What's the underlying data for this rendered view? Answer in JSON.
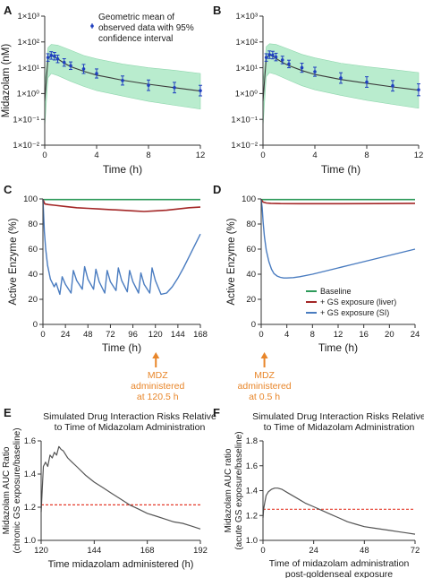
{
  "colors": {
    "band": "#b9ecce",
    "band_edge": "#8fd6ad",
    "obs": "#1f3fbf",
    "axis": "#333333",
    "baseline": "#2e9a5a",
    "liver": "#a32626",
    "si": "#4a7cc0",
    "orange": "#e8862a",
    "ref": "#e53a2a",
    "curve": "#555555"
  },
  "chart_data": [
    {
      "panel": "A",
      "type": "line",
      "xlabel": "Time (h)",
      "ylabel": "Midazolam (nM)",
      "xlim": [
        0,
        12
      ],
      "ylim": [
        0.01,
        1000
      ],
      "log_y": true,
      "xticks": [
        "0",
        "4",
        "8",
        "12"
      ],
      "yticks": [
        "1×10⁻²",
        "1×10⁻¹",
        "1×10⁰",
        "1×10¹",
        "1×10²",
        "1×10³"
      ],
      "legend": "Geometric mean of observed data with 95% confidence interval",
      "predicted": {
        "x": [
          0,
          0.25,
          0.5,
          0.75,
          1,
          1.5,
          2,
          3,
          4,
          6,
          8,
          10,
          12
        ],
        "y": [
          0.5,
          22,
          30,
          27,
          22,
          15,
          11,
          7.3,
          5.2,
          3.3,
          2.3,
          1.7,
          1.25
        ]
      },
      "ci_upper": {
        "x": [
          0,
          0.25,
          0.5,
          1,
          2,
          3,
          4,
          6,
          8,
          10,
          12
        ],
        "y": [
          2,
          60,
          80,
          75,
          48,
          30,
          22,
          14,
          10,
          8,
          6
        ]
      },
      "ci_lower": {
        "x": [
          0,
          0.25,
          0.5,
          1,
          2,
          3,
          4,
          6,
          8,
          10,
          12
        ],
        "y": [
          0.05,
          4,
          6,
          5,
          3,
          1.9,
          1.3,
          0.8,
          0.5,
          0.35,
          0.25
        ]
      },
      "observed": {
        "x": [
          0.25,
          0.5,
          0.75,
          1,
          1.5,
          2,
          3,
          4,
          6,
          8,
          10,
          12
        ],
        "y": [
          25,
          30,
          28,
          22,
          16,
          12,
          9,
          6,
          3.2,
          2.1,
          1.7,
          1.3
        ],
        "err": [
          1.4,
          1.4,
          1.4,
          1.4,
          1.4,
          1.4,
          1.5,
          1.5,
          1.5,
          1.6,
          1.6,
          1.6
        ]
      }
    },
    {
      "panel": "B",
      "type": "line",
      "xlabel": "Time (h)",
      "ylabel": "",
      "xlim": [
        0,
        12
      ],
      "ylim": [
        0.01,
        1000
      ],
      "log_y": true,
      "xticks": [
        "0",
        "4",
        "8",
        "12"
      ],
      "yticks": [
        "1×10⁻²",
        "1×10⁻¹",
        "1×10⁰",
        "1×10¹",
        "1×10²",
        "1×10³"
      ],
      "predicted": {
        "x": [
          0,
          0.25,
          0.5,
          0.75,
          1,
          1.5,
          2,
          3,
          4,
          6,
          8,
          10,
          12
        ],
        "y": [
          0.5,
          23,
          31,
          28,
          23,
          16,
          12,
          7.8,
          5.5,
          3.5,
          2.5,
          1.8,
          1.35
        ]
      },
      "ci_upper": {
        "x": [
          0,
          0.25,
          0.5,
          1,
          2,
          3,
          4,
          6,
          8,
          10,
          12
        ],
        "y": [
          2,
          65,
          85,
          80,
          52,
          33,
          24,
          15,
          11,
          8.5,
          6.5
        ]
      },
      "ci_lower": {
        "x": [
          0,
          0.25,
          0.5,
          1,
          2,
          3,
          4,
          6,
          8,
          10,
          12
        ],
        "y": [
          0.05,
          4.5,
          6.5,
          5.5,
          3.3,
          2,
          1.4,
          0.85,
          0.55,
          0.38,
          0.27
        ]
      },
      "observed": {
        "x": [
          0.25,
          0.5,
          0.75,
          1,
          1.5,
          2,
          3,
          4,
          6,
          8,
          10,
          12
        ],
        "y": [
          25,
          32,
          31,
          26,
          20,
          14,
          10,
          7,
          4,
          2.8,
          2,
          1.4
        ],
        "err": [
          1.4,
          1.4,
          1.4,
          1.4,
          1.4,
          1.4,
          1.5,
          1.5,
          1.6,
          1.6,
          1.6,
          1.7
        ]
      }
    },
    {
      "panel": "C",
      "type": "line",
      "xlabel": "Time (h)",
      "ylabel": "Active Enzyme (%)",
      "xlim": [
        0,
        168
      ],
      "ylim": [
        0,
        100
      ],
      "xticks": [
        "0",
        "24",
        "48",
        "72",
        "96",
        "120",
        "144",
        "168"
      ],
      "yticks": [
        "0",
        "20",
        "40",
        "60",
        "80",
        "100"
      ],
      "annotation": [
        "MDZ",
        "administered",
        "at 120.5 h"
      ],
      "annotation_x": 120.5,
      "series": [
        {
          "key": "baseline",
          "x": [
            0,
            168
          ],
          "y": [
            99.5,
            99.5
          ]
        },
        {
          "key": "liver",
          "x": [
            0,
            2,
            6,
            12,
            24,
            36,
            48,
            60,
            72,
            84,
            96,
            108,
            120,
            132,
            144,
            156,
            168
          ],
          "y": [
            99.5,
            96,
            95.5,
            95,
            94,
            93,
            92.5,
            92,
            91.5,
            91,
            90.5,
            90,
            90.5,
            91,
            92,
            93,
            93.5
          ]
        },
        {
          "key": "si",
          "x": [
            0,
            0.5,
            1.5,
            3,
            5,
            8,
            12,
            14,
            18,
            20.5,
            24,
            30,
            32.5,
            36,
            42,
            44.5,
            48,
            54,
            56.5,
            60,
            66,
            68.5,
            72,
            78,
            80.5,
            84,
            90,
            92.5,
            96,
            102,
            104.5,
            108,
            114,
            116.5,
            120,
            126,
            132,
            138,
            144,
            150,
            156,
            162,
            168
          ],
          "y": [
            99.5,
            92,
            74,
            60,
            47,
            36,
            30,
            33,
            24,
            38,
            32,
            25,
            43,
            35,
            28,
            46,
            36,
            28,
            44,
            34,
            25,
            43,
            34,
            27,
            45,
            35,
            26,
            43,
            34,
            25,
            41,
            32,
            25,
            45,
            35,
            24,
            25,
            30,
            37,
            45,
            54,
            63,
            72
          ]
        }
      ]
    },
    {
      "panel": "D",
      "type": "line",
      "xlabel": "Time (h)",
      "ylabel": "Active Enzyme (%)",
      "xlim": [
        0,
        24
      ],
      "ylim": [
        0,
        100
      ],
      "xticks": [
        "0",
        "4",
        "8",
        "12",
        "16",
        "20",
        "24"
      ],
      "yticks": [
        "0",
        "20",
        "40",
        "60",
        "80",
        "100"
      ],
      "annotation": [
        "MDZ",
        "administered",
        "at 0.5 h"
      ],
      "annotation_x": 0.5,
      "legend": [
        {
          "key": "baseline",
          "label": "Baseline"
        },
        {
          "key": "liver",
          "label": "+ GS exposure (liver)"
        },
        {
          "key": "si",
          "label": "+ GS exposure (SI)"
        }
      ],
      "series": [
        {
          "key": "baseline",
          "x": [
            0,
            24
          ],
          "y": [
            99.5,
            99.5
          ]
        },
        {
          "key": "liver",
          "x": [
            0,
            0.3,
            0.8,
            1.5,
            3,
            6,
            12,
            18,
            24
          ],
          "y": [
            99.5,
            97.5,
            96.8,
            96.5,
            96.3,
            96.2,
            96.2,
            96.3,
            96.5
          ]
        },
        {
          "key": "si",
          "x": [
            0,
            0.15,
            0.3,
            0.5,
            0.8,
            1.2,
            1.6,
            2,
            2.5,
            3,
            3.5,
            4,
            5,
            6,
            8,
            10,
            12,
            14,
            16,
            18,
            20,
            22,
            24
          ],
          "y": [
            99.5,
            93,
            82,
            70,
            59,
            50,
            44,
            40.5,
            38.5,
            37.5,
            37,
            37,
            37.3,
            38,
            40,
            42.5,
            45,
            47.5,
            50,
            52.5,
            55,
            57.5,
            60
          ]
        }
      ]
    },
    {
      "panel": "E",
      "type": "line",
      "title": "Simulated Drug Interaction Risks Relative to Time of Midazolam Administration",
      "title_lines": [
        "Simulated Drug Interaction Risks Relative",
        "to Time of Midazolam Administration"
      ],
      "xlabel": "Time midazolam administered (h)",
      "ylabel": "Midazolam AUC Ratio (chronic GS exposure/baseline)",
      "ylabel_lines": [
        "Midazolam AUC Ratio",
        "(chronic GS exposure/baseline)"
      ],
      "xlim": [
        120,
        192
      ],
      "ylim": [
        1.0,
        1.7
      ],
      "xticks": [
        "120",
        "144",
        "168",
        "192"
      ],
      "yticks": [
        "1.0",
        "1.2",
        "1.4",
        "1.6"
      ],
      "reference_y": 1.25,
      "x": [
        120,
        121,
        122,
        123,
        124,
        125,
        126,
        127,
        128,
        129,
        130,
        132,
        134,
        136,
        140,
        144,
        148,
        152,
        156,
        160,
        164,
        168,
        172,
        176,
        180,
        184,
        188,
        192
      ],
      "y": [
        1.2,
        1.52,
        1.55,
        1.52,
        1.6,
        1.58,
        1.62,
        1.6,
        1.66,
        1.64,
        1.63,
        1.58,
        1.55,
        1.52,
        1.46,
        1.41,
        1.37,
        1.33,
        1.29,
        1.25,
        1.22,
        1.19,
        1.17,
        1.15,
        1.13,
        1.12,
        1.1,
        1.08
      ]
    },
    {
      "panel": "F",
      "type": "line",
      "title": "Simulated Drug Interaction Risks Relative to Time of Midazolam Administration",
      "title_lines": [
        "Simulated Drug Interaction Risks Relative",
        "to Time of Midazolam Administration"
      ],
      "xlabel": "Time of midazolam administration post-goldenseal exposure",
      "xlabel_lines": [
        "Time of midazolam administration",
        "post-goldenseal exposure"
      ],
      "ylabel": "Midazolam AUC ratio (acute GS exposure/baseline)",
      "ylabel_lines": [
        "Midazolam AUC ratio",
        "(acute GS exposure/baseline)"
      ],
      "xlim": [
        0,
        72
      ],
      "ylim": [
        1.0,
        1.8
      ],
      "xticks": [
        "0",
        "24",
        "48",
        "72"
      ],
      "yticks": [
        "1.0",
        "1.2",
        "1.4",
        "1.6",
        "1.8"
      ],
      "reference_y": 1.25,
      "x": [
        0,
        0.3,
        0.8,
        1.5,
        2.5,
        4,
        5.5,
        7,
        9,
        12,
        16,
        20,
        24,
        28,
        32,
        36,
        40,
        44,
        48,
        52,
        56,
        60,
        64,
        68,
        72
      ],
      "y": [
        1.18,
        1.25,
        1.3,
        1.36,
        1.39,
        1.41,
        1.42,
        1.42,
        1.41,
        1.38,
        1.34,
        1.3,
        1.27,
        1.24,
        1.21,
        1.18,
        1.15,
        1.13,
        1.11,
        1.1,
        1.09,
        1.08,
        1.07,
        1.06,
        1.05
      ]
    }
  ]
}
